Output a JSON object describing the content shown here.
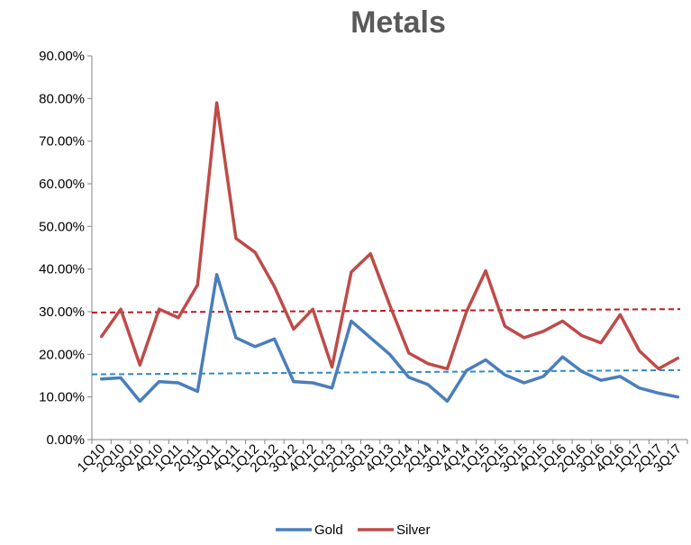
{
  "chart_data": {
    "type": "line",
    "title": "Metals",
    "xlabel": "",
    "ylabel": "",
    "ylim": [
      0,
      90
    ],
    "y_ticks": [
      "0.00%",
      "10.00%",
      "20.00%",
      "30.00%",
      "40.00%",
      "50.00%",
      "60.00%",
      "70.00%",
      "80.00%",
      "90.00%"
    ],
    "y_tick_values": [
      0,
      10,
      20,
      30,
      40,
      50,
      60,
      70,
      80,
      90
    ],
    "grid": false,
    "legend_position": "bottom",
    "categories": [
      "1Q10",
      "2Q10",
      "3Q10",
      "4Q10",
      "1Q11",
      "2Q11",
      "3Q11",
      "4Q11",
      "1Q12",
      "2Q12",
      "3Q12",
      "4Q12",
      "1Q13",
      "2Q13",
      "3Q13",
      "4Q13",
      "1Q14",
      "2Q14",
      "3Q14",
      "4Q14",
      "1Q15",
      "2Q15",
      "3Q15",
      "4Q15",
      "1Q16",
      "2Q16",
      "3Q16",
      "4Q16",
      "1Q17",
      "2Q17",
      "3Q17"
    ],
    "series": [
      {
        "name": "Gold",
        "color": "#4A7EBB",
        "values": [
          14.2,
          14.5,
          9.0,
          13.6,
          13.3,
          11.3,
          38.7,
          23.9,
          21.8,
          23.6,
          13.6,
          13.3,
          12.1,
          27.8,
          23.9,
          20.0,
          14.6,
          12.9,
          9.0,
          16.2,
          18.7,
          15.2,
          13.3,
          14.8,
          19.4,
          16.0,
          13.9,
          14.8,
          12.1,
          10.9,
          10.0
        ],
        "trend": [
          15.3,
          16.3
        ],
        "trend_color": "#2E8BC9"
      },
      {
        "name": "Silver",
        "color": "#BE4B48",
        "values": [
          24.2,
          30.6,
          17.5,
          30.6,
          28.6,
          36.3,
          79.0,
          47.2,
          43.9,
          35.9,
          25.9,
          30.6,
          17.0,
          39.3,
          43.6,
          31.6,
          20.3,
          17.8,
          16.6,
          30.0,
          39.6,
          26.6,
          23.9,
          25.4,
          27.8,
          24.4,
          22.7,
          29.3,
          20.8,
          16.6,
          19.1
        ],
        "trend": [
          29.8,
          30.6
        ],
        "trend_color": "#C0191C"
      }
    ]
  }
}
